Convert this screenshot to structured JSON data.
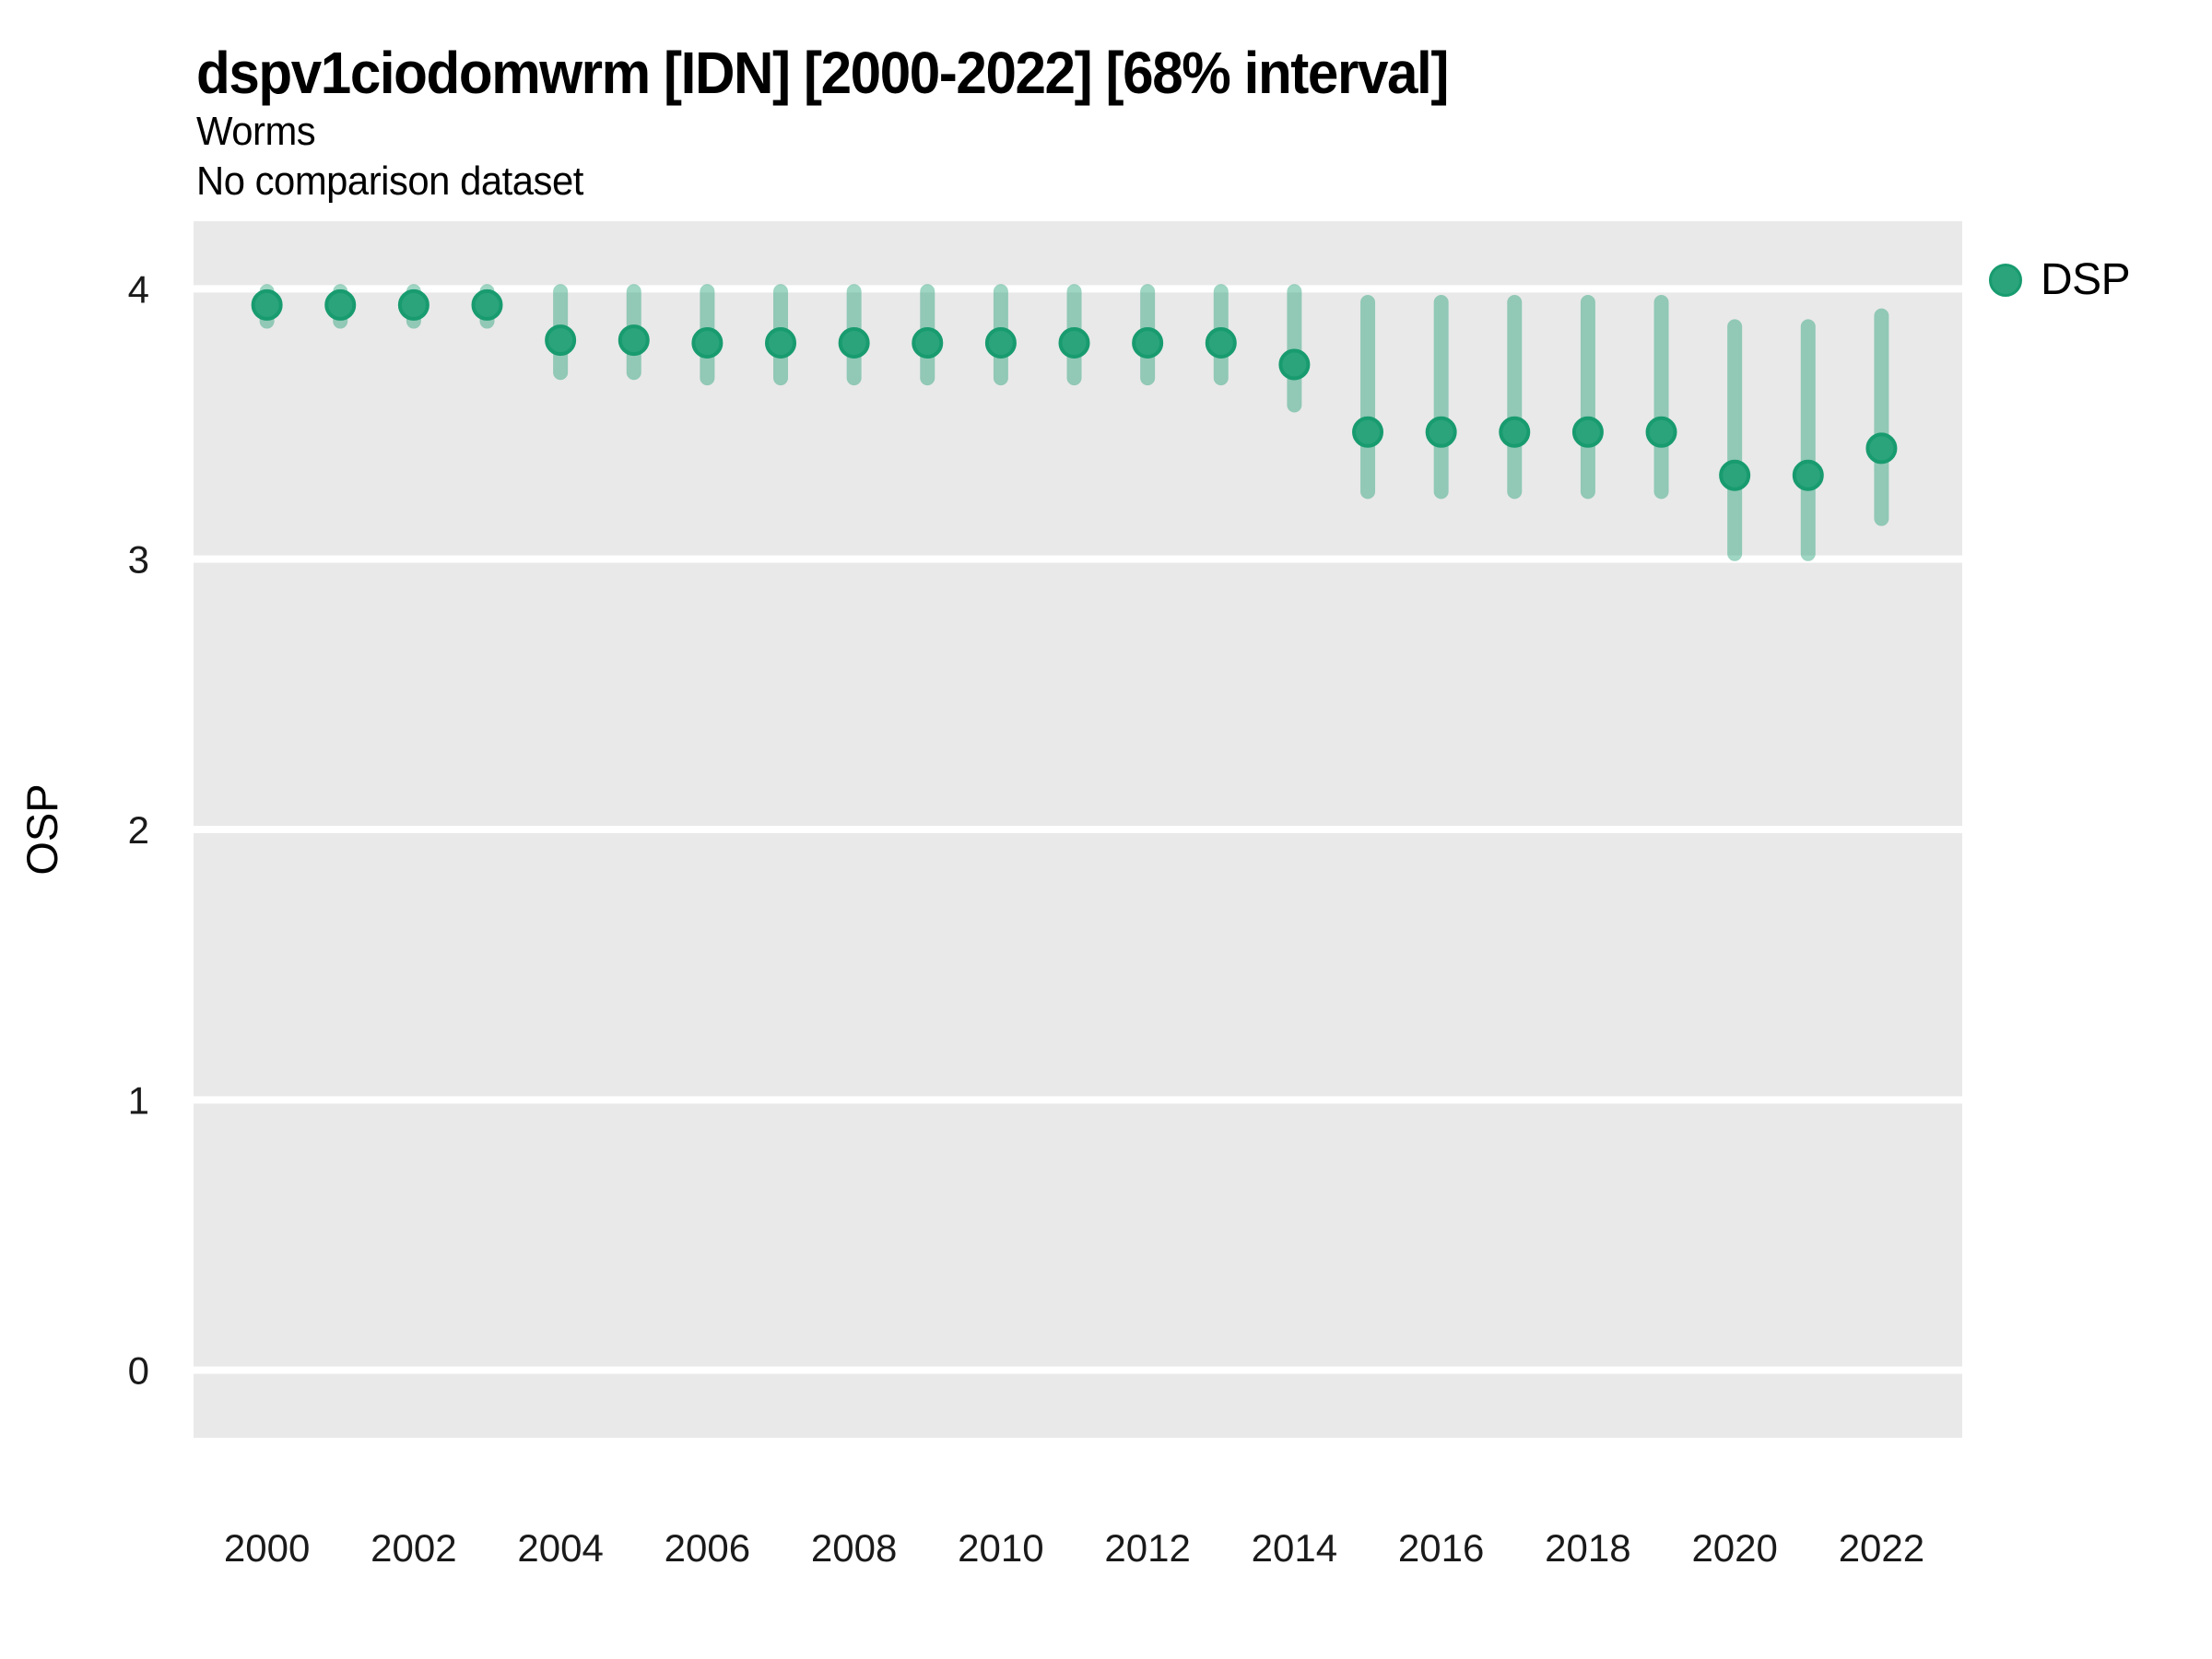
{
  "header": {
    "title": "dspv1ciodomwrm [IDN] [2000-2022] [68% interval]",
    "subtitle": "Worms",
    "note": "No comparison dataset"
  },
  "legend": {
    "position": "top-right",
    "items": [
      {
        "label": "DSP",
        "marker": "circle-icon"
      }
    ]
  },
  "axes": {
    "y_title": "OSP",
    "x_title": ""
  },
  "colors": {
    "point_fill": "#2BA47B",
    "point_stroke": "#189B6F",
    "error_bar": "rgba(24,155,111,0.42)",
    "panel_bg": "#E9E9E9",
    "gridline": "#FFFFFF",
    "tick_text": "#1a1a1a"
  },
  "chart_data": {
    "type": "scatter",
    "title": "dspv1ciodomwrm [IDN] [2000-2022] [68% interval]",
    "subtitle": "Worms",
    "annotation": "No comparison dataset",
    "xlabel": "",
    "ylabel": "OSP",
    "interval": "68%",
    "grid": "horizontal-major-only",
    "legend_position": "top-right",
    "x": [
      2000,
      2001,
      2002,
      2003,
      2004,
      2005,
      2006,
      2007,
      2008,
      2009,
      2010,
      2011,
      2012,
      2013,
      2014,
      2015,
      2016,
      2017,
      2018,
      2019,
      2020,
      2021,
      2022
    ],
    "series": [
      {
        "name": "DSP",
        "values": [
          3.94,
          3.94,
          3.94,
          3.94,
          3.81,
          3.81,
          3.8,
          3.8,
          3.8,
          3.8,
          3.8,
          3.8,
          3.8,
          3.8,
          3.72,
          3.47,
          3.47,
          3.47,
          3.47,
          3.47,
          3.31,
          3.31,
          3.41
        ],
        "lower": [
          3.88,
          3.88,
          3.88,
          3.88,
          3.69,
          3.69,
          3.67,
          3.67,
          3.67,
          3.67,
          3.67,
          3.67,
          3.67,
          3.67,
          3.57,
          3.25,
          3.25,
          3.25,
          3.25,
          3.25,
          3.02,
          3.02,
          3.15
        ],
        "upper": [
          3.99,
          3.99,
          3.99,
          3.99,
          3.99,
          3.99,
          3.99,
          3.99,
          3.99,
          3.99,
          3.99,
          3.99,
          3.99,
          3.99,
          3.99,
          3.95,
          3.95,
          3.95,
          3.95,
          3.95,
          3.86,
          3.86,
          3.9
        ]
      }
    ],
    "xticks": [
      2000,
      2002,
      2004,
      2006,
      2008,
      2010,
      2012,
      2014,
      2016,
      2018,
      2020,
      2022
    ],
    "yticks": [
      0,
      1,
      2,
      3,
      4
    ],
    "xlim": [
      1999.0,
      2023.1
    ],
    "ylim": [
      -0.25,
      4.25
    ]
  }
}
